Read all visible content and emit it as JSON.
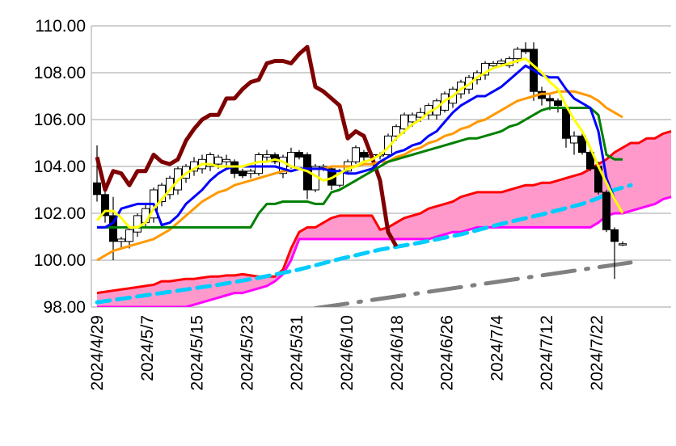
{
  "chart_data": {
    "type": "candlestick",
    "title": "",
    "xlabel": "",
    "ylabel": "",
    "ylim": [
      98,
      110
    ],
    "grid": true,
    "y_ticks": [
      "98.00",
      "100.00",
      "102.00",
      "104.00",
      "106.00",
      "108.00",
      "110.00"
    ],
    "x_tick_labels": [
      "2024/4/29",
      "2024/5/7",
      "2024/5/15",
      "2024/5/23",
      "2024/5/31",
      "2024/6/10",
      "2024/6/18",
      "2024/6/26",
      "2024/7/4",
      "2024/7/12",
      "2024/7/22"
    ],
    "colors": {
      "up_fill": "#ffffff",
      "down_fill": "#000000",
      "grid": "#c0c0c0",
      "cloud": "#ff99cc"
    },
    "candles": [
      [
        103.3,
        104.9,
        102.5,
        102.8
      ],
      [
        102.8,
        103.0,
        101.6,
        101.9
      ],
      [
        101.9,
        102.7,
        100.0,
        100.8
      ],
      [
        100.8,
        101.0,
        100.5,
        100.9
      ],
      [
        100.8,
        101.4,
        100.5,
        101.3
      ],
      [
        101.2,
        102.0,
        101.0,
        101.9
      ],
      [
        101.6,
        102.4,
        101.4,
        102.2
      ],
      [
        101.8,
        103.1,
        101.6,
        103.0
      ],
      [
        102.5,
        103.3,
        102.3,
        103.2
      ],
      [
        102.8,
        103.6,
        102.6,
        103.5
      ],
      [
        103.0,
        104.0,
        102.8,
        103.9
      ],
      [
        103.5,
        104.1,
        103.3,
        104.0
      ],
      [
        103.8,
        104.4,
        103.6,
        104.2
      ],
      [
        103.9,
        104.5,
        103.7,
        104.3
      ],
      [
        104.0,
        104.6,
        103.8,
        104.5
      ],
      [
        104.1,
        104.5,
        103.9,
        104.4
      ],
      [
        104.2,
        104.5,
        104.0,
        104.3
      ],
      [
        104.2,
        104.3,
        103.5,
        103.7
      ],
      [
        103.8,
        103.9,
        103.5,
        103.6
      ],
      [
        103.7,
        103.9,
        103.5,
        103.8
      ],
      [
        103.7,
        104.6,
        103.6,
        104.5
      ],
      [
        104.4,
        104.7,
        104.2,
        104.5
      ],
      [
        104.5,
        104.6,
        104.1,
        104.2
      ],
      [
        103.7,
        104.5,
        103.5,
        104.4
      ],
      [
        104.0,
        104.8,
        103.9,
        104.6
      ],
      [
        104.6,
        104.7,
        104.3,
        104.4
      ],
      [
        104.5,
        104.6,
        102.6,
        103.0
      ],
      [
        103.0,
        104.1,
        102.9,
        104.0
      ],
      [
        104.0,
        104.1,
        103.8,
        104.0
      ],
      [
        103.9,
        104.0,
        103.0,
        103.2
      ],
      [
        103.2,
        103.9,
        103.1,
        103.8
      ],
      [
        103.8,
        104.3,
        103.7,
        104.2
      ],
      [
        104.2,
        104.9,
        104.1,
        104.8
      ],
      [
        104.6,
        104.7,
        104.2,
        104.4
      ],
      [
        104.4,
        104.6,
        104.3,
        104.5
      ],
      [
        104.5,
        104.6,
        104.3,
        104.5
      ],
      [
        104.5,
        105.4,
        104.4,
        105.3
      ],
      [
        105.3,
        105.8,
        105.1,
        105.7
      ],
      [
        105.6,
        106.3,
        105.4,
        106.2
      ],
      [
        105.9,
        106.3,
        105.7,
        106.2
      ],
      [
        106.1,
        106.5,
        105.9,
        106.3
      ],
      [
        106.2,
        106.7,
        106.0,
        106.6
      ],
      [
        106.2,
        106.9,
        106.0,
        106.8
      ],
      [
        106.4,
        107.2,
        106.3,
        107.1
      ],
      [
        106.7,
        107.4,
        106.5,
        107.3
      ],
      [
        107.1,
        107.7,
        106.9,
        107.6
      ],
      [
        107.3,
        107.9,
        107.1,
        107.8
      ],
      [
        107.7,
        108.1,
        107.5,
        108.0
      ],
      [
        107.9,
        108.5,
        107.7,
        108.4
      ],
      [
        108.3,
        108.5,
        108.2,
        108.4
      ],
      [
        108.4,
        108.6,
        108.3,
        108.5
      ],
      [
        108.3,
        108.7,
        108.2,
        108.6
      ],
      [
        108.6,
        109.1,
        108.4,
        109.0
      ],
      [
        109.0,
        109.3,
        108.8,
        108.9
      ],
      [
        109.0,
        109.3,
        106.8,
        107.2
      ],
      [
        107.2,
        107.4,
        106.6,
        106.9
      ],
      [
        106.9,
        107.1,
        106.4,
        106.8
      ],
      [
        106.8,
        106.9,
        106.3,
        106.6
      ],
      [
        106.5,
        106.6,
        104.8,
        105.2
      ],
      [
        105.0,
        105.5,
        104.5,
        105.3
      ],
      [
        105.3,
        105.4,
        104.5,
        104.6
      ],
      [
        104.6,
        104.8,
        103.8,
        103.9
      ],
      [
        104.0,
        104.2,
        102.8,
        102.9
      ],
      [
        102.9,
        103.0,
        101.2,
        101.3
      ],
      [
        101.3,
        101.4,
        99.2,
        100.8
      ],
      [
        100.7,
        100.8,
        100.6,
        100.7
      ]
    ],
    "series": [
      {
        "color": "#7f0000",
        "width": 5,
        "dash": "",
        "values": [
          104.4,
          103.0,
          103.8,
          103.7,
          103.2,
          103.8,
          103.8,
          104.5,
          104.2,
          104.1,
          104.3,
          105.1,
          105.6,
          106.0,
          106.2,
          106.2,
          106.9,
          106.9,
          107.3,
          107.6,
          107.7,
          108.4,
          108.5,
          108.5,
          108.4,
          108.8,
          109.1,
          107.4,
          107.2,
          106.9,
          106.6,
          105.2,
          105.5,
          105.3,
          104.4,
          103.4,
          101.2,
          100.6
        ]
      },
      {
        "color": "#ff9900",
        "width": 3,
        "dash": "",
        "values": [
          100.0,
          100.2,
          100.4,
          100.5,
          100.6,
          100.7,
          100.8,
          100.9,
          101.1,
          101.3,
          101.6,
          101.9,
          102.2,
          102.5,
          102.7,
          102.9,
          103.0,
          103.2,
          103.3,
          103.4,
          103.5,
          103.6,
          103.7,
          103.8,
          103.8,
          103.9,
          103.9,
          103.9,
          103.9,
          104.0,
          104.0,
          104.0,
          104.0,
          104.1,
          104.1,
          104.2,
          104.2,
          104.4,
          104.5,
          104.7,
          104.8,
          105.0,
          105.1,
          105.3,
          105.4,
          105.6,
          105.7,
          105.9,
          106.0,
          106.2,
          106.4,
          106.6,
          106.8,
          106.9,
          107.0,
          107.1,
          107.1,
          107.2,
          107.2,
          107.2,
          107.1,
          107.0,
          106.8,
          106.5,
          106.3,
          106.1
        ]
      },
      {
        "color": "#008000",
        "width": 3,
        "dash": "",
        "values": [
          101.4,
          101.4,
          101.4,
          101.4,
          101.4,
          101.4,
          101.4,
          101.4,
          101.4,
          101.4,
          101.4,
          101.4,
          101.4,
          101.4,
          101.4,
          101.4,
          101.4,
          101.4,
          101.4,
          101.4,
          102.0,
          102.4,
          102.4,
          102.5,
          102.5,
          102.5,
          102.5,
          102.4,
          102.4,
          102.9,
          103.0,
          103.2,
          103.4,
          103.6,
          103.8,
          104.0,
          104.2,
          104.3,
          104.4,
          104.5,
          104.6,
          104.7,
          104.8,
          104.9,
          105.0,
          105.1,
          105.2,
          105.2,
          105.3,
          105.4,
          105.5,
          105.7,
          105.8,
          106.0,
          106.2,
          106.4,
          106.5,
          106.5,
          106.5,
          106.5,
          106.5,
          106.5,
          106.2,
          104.5,
          104.3,
          104.3
        ]
      },
      {
        "color": "#0000ff",
        "width": 3,
        "dash": "",
        "values": [
          101.4,
          101.4,
          101.6,
          102.2,
          102.3,
          102.4,
          102.4,
          102.4,
          101.5,
          101.6,
          101.9,
          102.4,
          102.7,
          103.0,
          103.4,
          103.7,
          103.9,
          104.0,
          104.0,
          104.0,
          104.0,
          104.0,
          104.0,
          103.9,
          103.8,
          103.9,
          103.9,
          103.9,
          103.9,
          103.8,
          103.8,
          103.7,
          103.7,
          103.8,
          103.9,
          104.2,
          104.4,
          104.6,
          104.7,
          104.9,
          105.0,
          105.3,
          105.5,
          105.9,
          106.3,
          106.6,
          106.8,
          107.0,
          107.0,
          107.2,
          107.4,
          107.7,
          108.0,
          108.3,
          108.1,
          107.9,
          107.8,
          107.8,
          107.3,
          106.9,
          106.7,
          106.5,
          105.5,
          103.5,
          102.6
        ]
      },
      {
        "color": "#ffff00",
        "width": 3,
        "dash": "",
        "values": [
          101.7,
          102.1,
          102.1,
          101.8,
          101.4,
          101.4,
          101.6,
          102.2,
          102.6,
          103.0,
          103.4,
          103.7,
          103.9,
          104.1,
          104.1,
          104.0,
          104.0,
          104.0,
          104.0,
          104.1,
          104.2,
          104.2,
          104.3,
          104.2,
          104.0,
          103.9,
          103.8,
          103.6,
          103.4,
          103.5,
          103.7,
          103.9,
          104.0,
          104.2,
          104.3,
          104.5,
          104.8,
          105.2,
          105.5,
          105.8,
          106.0,
          106.3,
          106.5,
          106.8,
          107.0,
          107.3,
          107.5,
          107.8,
          108.0,
          108.2,
          108.3,
          108.4,
          108.5,
          108.6,
          108.3,
          108.0,
          107.6,
          107.3,
          106.6,
          106.0,
          105.5,
          104.8,
          104.0,
          103.3,
          102.6,
          102.0
        ]
      }
    ],
    "cloud": {
      "upper_color": "#ff0000",
      "lower_color": "#ff00ff",
      "upper": [
        98.6,
        98.65,
        98.7,
        98.75,
        98.8,
        98.85,
        98.9,
        98.95,
        99.1,
        99.1,
        99.15,
        99.2,
        99.2,
        99.25,
        99.3,
        99.3,
        99.35,
        99.35,
        99.4,
        99.35,
        99.3,
        99.3,
        99.3,
        99.6,
        100.5,
        101.2,
        101.4,
        101.4,
        101.6,
        101.8,
        101.9,
        101.9,
        101.9,
        101.9,
        101.9,
        101.3,
        101.4,
        101.6,
        101.8,
        101.9,
        102.0,
        102.2,
        102.3,
        102.4,
        102.5,
        102.7,
        102.8,
        102.9,
        102.9,
        102.9,
        102.9,
        103.0,
        103.1,
        103.2,
        103.2,
        103.3,
        103.3,
        103.4,
        103.5,
        103.6,
        103.7,
        103.9,
        104.1,
        104.3,
        104.6,
        104.8,
        105.0,
        105.0,
        105.2,
        105.2,
        105.4,
        105.5
      ],
      "lower": [
        98.0,
        98.0,
        98.0,
        98.0,
        98.0,
        98.0,
        98.0,
        98.0,
        98.0,
        98.0,
        98.0,
        98.0,
        98.1,
        98.2,
        98.3,
        98.4,
        98.5,
        98.6,
        98.6,
        98.7,
        98.8,
        98.9,
        99.1,
        99.4,
        100.0,
        100.9,
        100.9,
        100.9,
        100.9,
        100.9,
        100.9,
        100.9,
        100.9,
        100.9,
        100.9,
        100.9,
        100.9,
        100.9,
        100.9,
        100.9,
        100.9,
        100.9,
        101.0,
        101.1,
        101.2,
        101.2,
        101.3,
        101.4,
        101.4,
        101.4,
        101.4,
        101.4,
        101.4,
        101.4,
        101.4,
        101.4,
        101.4,
        101.4,
        101.4,
        101.4,
        101.4,
        101.4,
        101.6,
        101.9,
        102.0,
        102.0,
        102.1,
        102.2,
        102.3,
        102.4,
        102.6,
        102.7
      ]
    },
    "trend_lines": [
      {
        "color": "#00ccff",
        "width": 5,
        "dash": "16,9",
        "points": [
          [
            0,
            98.2
          ],
          [
            5,
            98.45
          ],
          [
            10,
            98.7
          ],
          [
            15,
            98.95
          ],
          [
            20,
            99.25
          ],
          [
            25,
            99.6
          ],
          [
            30,
            100.05
          ],
          [
            35,
            100.45
          ],
          [
            40,
            100.75
          ],
          [
            45,
            101.1
          ],
          [
            50,
            101.55
          ],
          [
            55,
            101.95
          ],
          [
            60,
            102.4
          ],
          [
            62,
            102.65
          ],
          [
            64,
            103.0
          ],
          [
            66,
            103.2
          ]
        ]
      },
      {
        "color": "#808080",
        "width": 5,
        "dash": "40,14,3,14",
        "points": [
          [
            27,
            97.95
          ],
          [
            66,
            99.9
          ]
        ]
      }
    ]
  }
}
